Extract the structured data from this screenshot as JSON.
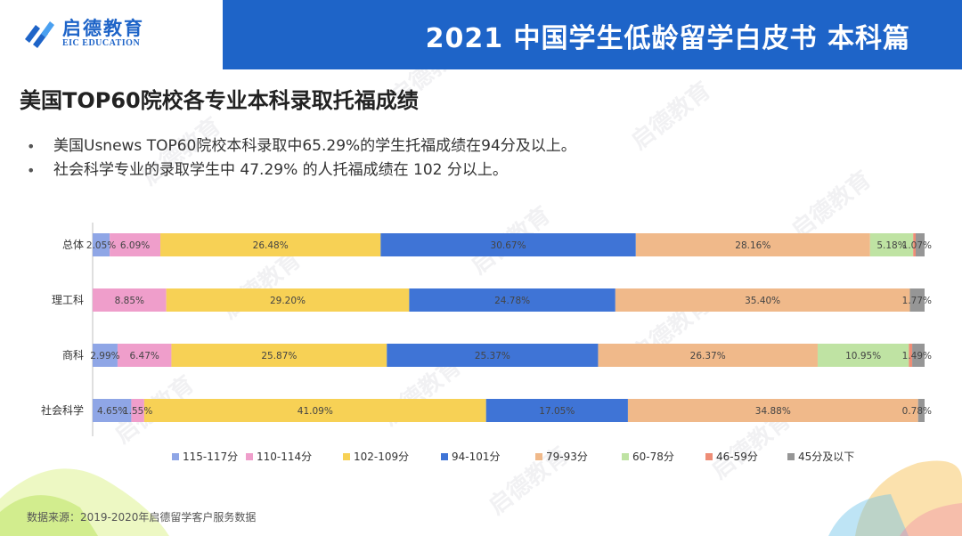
{
  "header": {
    "logo_cn": "启德教育",
    "logo_en": "EIC EDUCATION",
    "title": "2021 中国学生低龄留学白皮书 本科篇"
  },
  "page": {
    "title": "美国TOP60院校各专业本科录取托福成绩",
    "bullets": [
      "美国Usnews TOP60院校本科录取中65.29%的学生托福成绩在94分及以上。",
      "社会科学专业的录取学生中 47.29% 的人托福成绩在 102 分以上。"
    ],
    "source": "数据来源：2019-2020年启德留学客户服务数据",
    "watermark_text": "启德教育"
  },
  "colors": {
    "header_blue": "#1e64c8",
    "series": [
      "#8fa6e6",
      "#ef9ecb",
      "#f7d155",
      "#3f74d6",
      "#f0b98a",
      "#bfe3a3",
      "#ee8d76",
      "#969696"
    ]
  },
  "chart_data": {
    "type": "bar",
    "orientation": "horizontal",
    "stacked": true,
    "normalized_to_percent": true,
    "title": "",
    "xlabel": "",
    "ylabel": "",
    "xlim": [
      0,
      100
    ],
    "legend_position": "bottom",
    "categories": [
      "总体",
      "理工科",
      "商科",
      "社会科学"
    ],
    "series": [
      {
        "name": "115-117分",
        "values": [
          2.05,
          0,
          2.99,
          4.65
        ],
        "labels": [
          "2.05%",
          "",
          "2.99%",
          "4.65%"
        ]
      },
      {
        "name": "110-114分",
        "values": [
          6.09,
          8.85,
          6.47,
          1.55
        ],
        "labels": [
          "6.09%",
          "8.85%",
          "6.47%",
          "1.55%"
        ]
      },
      {
        "name": "102-109分",
        "values": [
          26.48,
          29.2,
          25.87,
          41.09
        ],
        "labels": [
          "26.48%",
          "29.20%",
          "25.87%",
          "41.09%"
        ]
      },
      {
        "name": "94-101分",
        "values": [
          30.67,
          24.78,
          25.37,
          17.05
        ],
        "labels": [
          "30.67%",
          "24.78%",
          "25.37%",
          "17.05%"
        ]
      },
      {
        "name": "79-93分",
        "values": [
          28.16,
          35.4,
          26.37,
          34.88
        ],
        "labels": [
          "28.16%",
          "35.40%",
          "26.37%",
          "34.88%"
        ]
      },
      {
        "name": "60-78分",
        "values": [
          5.18,
          0,
          10.95,
          0
        ],
        "labels": [
          "5.18%",
          "",
          "10.95%",
          ""
        ]
      },
      {
        "name": "46-59分",
        "values": [
          0.3,
          0,
          0.4,
          0
        ],
        "labels": [
          "",
          "",
          "",
          ""
        ]
      },
      {
        "name": "45分及以下",
        "values": [
          1.07,
          1.77,
          1.49,
          0.78
        ],
        "labels": [
          "1.07%",
          "1.77%",
          "1.49%",
          "0.78%"
        ]
      }
    ]
  }
}
